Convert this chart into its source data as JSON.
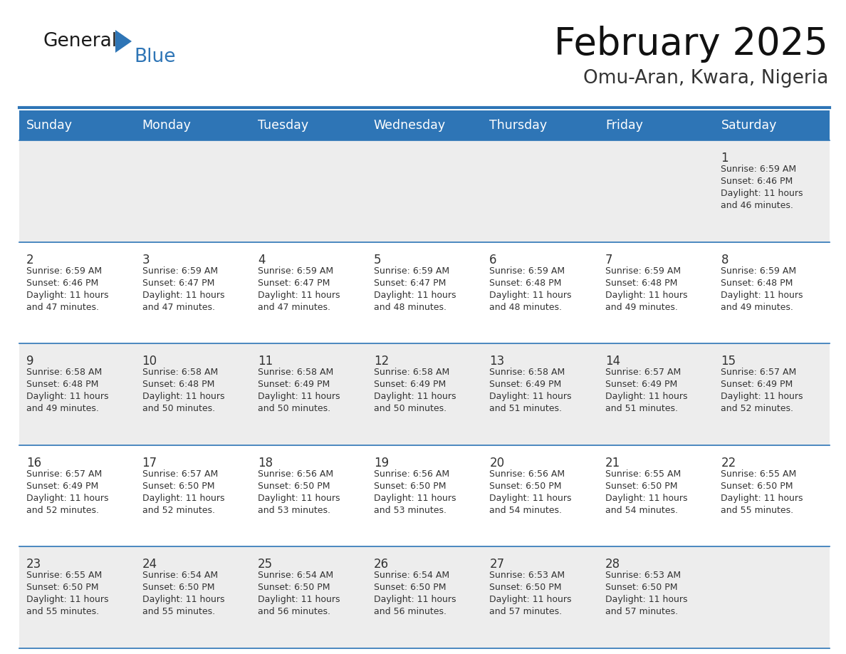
{
  "title": "February 2025",
  "subtitle": "Omu-Aran, Kwara, Nigeria",
  "header_bg": "#2E75B6",
  "header_text_color": "#FFFFFF",
  "days_of_week": [
    "Sunday",
    "Monday",
    "Tuesday",
    "Wednesday",
    "Thursday",
    "Friday",
    "Saturday"
  ],
  "row_bg_odd": "#EDEDED",
  "row_bg_even": "#FFFFFF",
  "border_color": "#2E75B6",
  "day_num_color": "#333333",
  "info_text_color": "#333333",
  "logo_color1": "#1A1A1A",
  "logo_color2": "#2E75B6",
  "logo_triangle_color": "#2E75B6",
  "calendar_data": [
    [
      null,
      null,
      null,
      null,
      null,
      null,
      {
        "day": 1,
        "sunrise": "6:59 AM",
        "sunset": "6:46 PM",
        "daylight": "11 hours\nand 46 minutes."
      }
    ],
    [
      {
        "day": 2,
        "sunrise": "6:59 AM",
        "sunset": "6:46 PM",
        "daylight": "11 hours\nand 47 minutes."
      },
      {
        "day": 3,
        "sunrise": "6:59 AM",
        "sunset": "6:47 PM",
        "daylight": "11 hours\nand 47 minutes."
      },
      {
        "day": 4,
        "sunrise": "6:59 AM",
        "sunset": "6:47 PM",
        "daylight": "11 hours\nand 47 minutes."
      },
      {
        "day": 5,
        "sunrise": "6:59 AM",
        "sunset": "6:47 PM",
        "daylight": "11 hours\nand 48 minutes."
      },
      {
        "day": 6,
        "sunrise": "6:59 AM",
        "sunset": "6:48 PM",
        "daylight": "11 hours\nand 48 minutes."
      },
      {
        "day": 7,
        "sunrise": "6:59 AM",
        "sunset": "6:48 PM",
        "daylight": "11 hours\nand 49 minutes."
      },
      {
        "day": 8,
        "sunrise": "6:59 AM",
        "sunset": "6:48 PM",
        "daylight": "11 hours\nand 49 minutes."
      }
    ],
    [
      {
        "day": 9,
        "sunrise": "6:58 AM",
        "sunset": "6:48 PM",
        "daylight": "11 hours\nand 49 minutes."
      },
      {
        "day": 10,
        "sunrise": "6:58 AM",
        "sunset": "6:48 PM",
        "daylight": "11 hours\nand 50 minutes."
      },
      {
        "day": 11,
        "sunrise": "6:58 AM",
        "sunset": "6:49 PM",
        "daylight": "11 hours\nand 50 minutes."
      },
      {
        "day": 12,
        "sunrise": "6:58 AM",
        "sunset": "6:49 PM",
        "daylight": "11 hours\nand 50 minutes."
      },
      {
        "day": 13,
        "sunrise": "6:58 AM",
        "sunset": "6:49 PM",
        "daylight": "11 hours\nand 51 minutes."
      },
      {
        "day": 14,
        "sunrise": "6:57 AM",
        "sunset": "6:49 PM",
        "daylight": "11 hours\nand 51 minutes."
      },
      {
        "day": 15,
        "sunrise": "6:57 AM",
        "sunset": "6:49 PM",
        "daylight": "11 hours\nand 52 minutes."
      }
    ],
    [
      {
        "day": 16,
        "sunrise": "6:57 AM",
        "sunset": "6:49 PM",
        "daylight": "11 hours\nand 52 minutes."
      },
      {
        "day": 17,
        "sunrise": "6:57 AM",
        "sunset": "6:50 PM",
        "daylight": "11 hours\nand 52 minutes."
      },
      {
        "day": 18,
        "sunrise": "6:56 AM",
        "sunset": "6:50 PM",
        "daylight": "11 hours\nand 53 minutes."
      },
      {
        "day": 19,
        "sunrise": "6:56 AM",
        "sunset": "6:50 PM",
        "daylight": "11 hours\nand 53 minutes."
      },
      {
        "day": 20,
        "sunrise": "6:56 AM",
        "sunset": "6:50 PM",
        "daylight": "11 hours\nand 54 minutes."
      },
      {
        "day": 21,
        "sunrise": "6:55 AM",
        "sunset": "6:50 PM",
        "daylight": "11 hours\nand 54 minutes."
      },
      {
        "day": 22,
        "sunrise": "6:55 AM",
        "sunset": "6:50 PM",
        "daylight": "11 hours\nand 55 minutes."
      }
    ],
    [
      {
        "day": 23,
        "sunrise": "6:55 AM",
        "sunset": "6:50 PM",
        "daylight": "11 hours\nand 55 minutes."
      },
      {
        "day": 24,
        "sunrise": "6:54 AM",
        "sunset": "6:50 PM",
        "daylight": "11 hours\nand 55 minutes."
      },
      {
        "day": 25,
        "sunrise": "6:54 AM",
        "sunset": "6:50 PM",
        "daylight": "11 hours\nand 56 minutes."
      },
      {
        "day": 26,
        "sunrise": "6:54 AM",
        "sunset": "6:50 PM",
        "daylight": "11 hours\nand 56 minutes."
      },
      {
        "day": 27,
        "sunrise": "6:53 AM",
        "sunset": "6:50 PM",
        "daylight": "11 hours\nand 57 minutes."
      },
      {
        "day": 28,
        "sunrise": "6:53 AM",
        "sunset": "6:50 PM",
        "daylight": "11 hours\nand 57 minutes."
      },
      null
    ]
  ]
}
